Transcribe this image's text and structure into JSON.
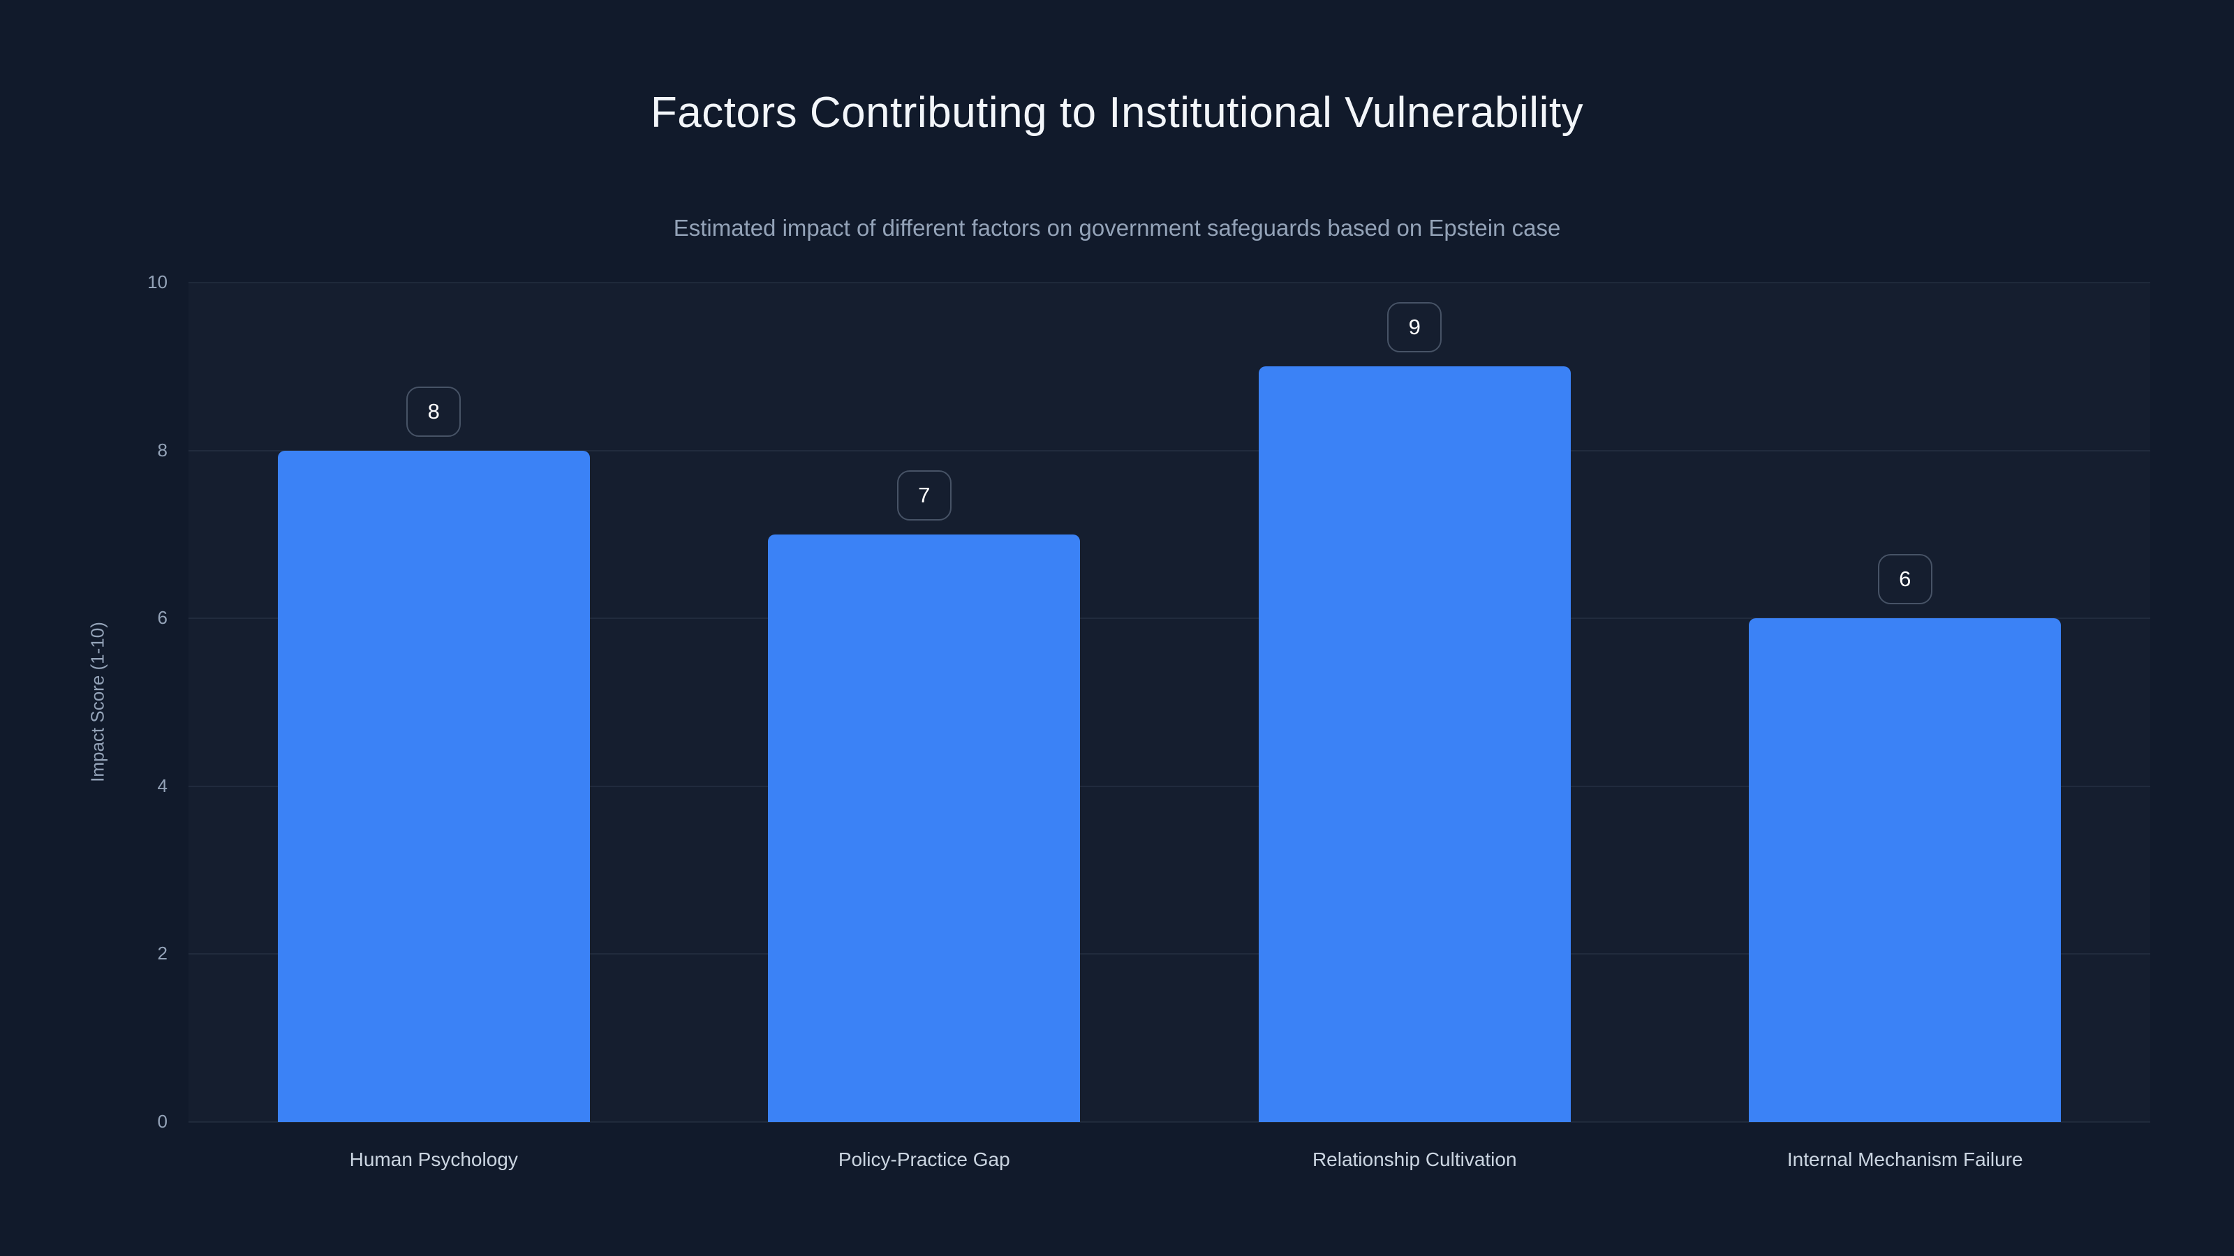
{
  "page": {
    "background_color": "#111a2b",
    "text_color_primary": "#f3f6fa",
    "text_color_secondary": "#94a3b8",
    "text_color_axis_category": "#cbd5e1"
  },
  "chart_data": {
    "type": "bar",
    "title": "Factors Contributing to Institutional Vulnerability",
    "subtitle": "Estimated impact of different factors on government safeguards based on Epstein case",
    "xlabel": "",
    "ylabel": "Impact Score (1-10)",
    "categories": [
      "Human Psychology",
      "Policy-Practice Gap",
      "Relationship Cultivation",
      "Internal Mechanism Failure"
    ],
    "values": [
      8,
      7,
      9,
      6
    ],
    "value_labels": [
      "8",
      "7",
      "9",
      "6"
    ],
    "ylim": [
      0,
      10
    ],
    "yticks": [
      0,
      2,
      4,
      6,
      8,
      10
    ],
    "grid": "horizontal",
    "legend": "none",
    "value_label_style": "rounded-outlined-box-above-bar",
    "bar_color": "#3b82f6",
    "grid_color": "rgba(148,163,184,0.10)",
    "value_box_border_color": "rgba(148,163,184,0.40)",
    "value_box_text_color": "#ffffff"
  }
}
